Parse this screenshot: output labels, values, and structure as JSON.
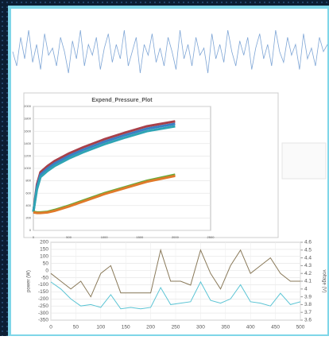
{
  "chart_data": [
    {
      "type": "line",
      "color": "#7fa6d6",
      "ylim": [
        0,
        1
      ],
      "values": [
        0.5,
        0.3,
        0.7,
        0.4,
        0.8,
        0.35,
        0.6,
        0.25,
        0.75,
        0.45,
        0.55,
        0.3,
        0.7,
        0.5,
        0.2,
        0.65,
        0.4,
        0.8,
        0.3,
        0.6,
        0.45,
        0.7,
        0.25,
        0.55,
        0.75,
        0.35,
        0.6,
        0.4,
        0.8,
        0.3,
        0.5,
        0.7,
        0.2,
        0.6,
        0.45,
        0.75,
        0.35,
        0.55,
        0.3,
        0.7,
        0.5,
        0.25,
        0.8,
        0.4,
        0.6,
        0.3,
        0.7,
        0.45,
        0.55,
        0.2,
        0.75,
        0.4,
        0.6,
        0.35,
        0.8,
        0.5,
        0.3,
        0.65,
        0.45,
        0.7,
        0.25,
        0.55,
        0.75,
        0.4,
        0.6,
        0.3,
        0.8,
        0.5,
        0.35,
        0.7,
        0.45,
        0.6,
        0.25,
        0.75,
        0.4,
        0.55,
        0.3,
        0.7,
        0.5,
        0.6
      ]
    },
    {
      "type": "line",
      "title": "Expend_Pressure_Plot",
      "grid": true,
      "x": [
        0,
        50,
        100,
        200,
        300,
        500,
        700,
        1000,
        1300,
        1600,
        2000
      ],
      "xlim": [
        0,
        2500
      ],
      "xticks": [
        0,
        500,
        1000,
        1500,
        2000,
        2500
      ],
      "ylim": [
        0,
        2000
      ],
      "yticks": [
        0,
        200,
        400,
        600,
        800,
        1000,
        1200,
        1400,
        1600,
        1800,
        2000
      ],
      "series": [
        {
          "color": "#a8404a",
          "values": [
            300,
            740,
            940,
            1040,
            1120,
            1240,
            1340,
            1470,
            1580,
            1680,
            1760
          ]
        },
        {
          "color": "#3a7fc4",
          "values": [
            300,
            700,
            900,
            1000,
            1080,
            1200,
            1300,
            1430,
            1540,
            1640,
            1720
          ]
        },
        {
          "color": "#2fa4b4",
          "values": [
            300,
            660,
            860,
            960,
            1040,
            1160,
            1260,
            1390,
            1500,
            1600,
            1680
          ]
        },
        {
          "color": "#6aaa3a",
          "values": [
            300,
            290,
            290,
            300,
            330,
            400,
            480,
            600,
            700,
            800,
            900
          ]
        },
        {
          "color": "#e07a2a",
          "values": [
            290,
            280,
            280,
            290,
            315,
            385,
            465,
            585,
            685,
            785,
            880
          ]
        }
      ]
    },
    {
      "type": "line",
      "ylabel": "power (W)",
      "y2label": "voltage (V)",
      "grid": true,
      "x": [
        0,
        20,
        40,
        60,
        80,
        100,
        120,
        140,
        160,
        180,
        200,
        220,
        240,
        260,
        280,
        300,
        320,
        340,
        360,
        380,
        400,
        420,
        440,
        460,
        480,
        500
      ],
      "xlim": [
        0,
        500
      ],
      "xticks": [
        0,
        50,
        100,
        150,
        200,
        250,
        300,
        350,
        400,
        450,
        500
      ],
      "ylim": [
        -350,
        200
      ],
      "yticks": [
        200,
        150,
        100,
        50,
        0,
        -50,
        -100,
        -150,
        -200,
        -250,
        -300,
        -350
      ],
      "y2lim": [
        3.6,
        4.6
      ],
      "y2ticks": [
        4.6,
        4.5,
        4.4,
        4.3,
        4.2,
        4.1,
        4,
        3.9,
        3.8,
        3.7,
        3.6
      ],
      "series": [
        {
          "color": "#5bc4d4",
          "values": [
            -80,
            -130,
            -200,
            -250,
            -240,
            -260,
            -170,
            -270,
            -260,
            -270,
            -260,
            -120,
            -240,
            -230,
            -220,
            -80,
            -210,
            -230,
            -200,
            -100,
            -220,
            -230,
            -250,
            -160,
            -240,
            -220
          ]
        },
        {
          "color": "#8a7a5a",
          "axis": "y2",
          "values": [
            4.2,
            4.1,
            4.0,
            4.1,
            3.9,
            4.2,
            4.3,
            3.95,
            3.95,
            3.95,
            3.95,
            4.5,
            4.1,
            4.1,
            4.05,
            4.5,
            4.2,
            4.0,
            4.3,
            4.5,
            4.2,
            4.3,
            4.4,
            4.2,
            4.1,
            4.1
          ]
        }
      ]
    }
  ]
}
